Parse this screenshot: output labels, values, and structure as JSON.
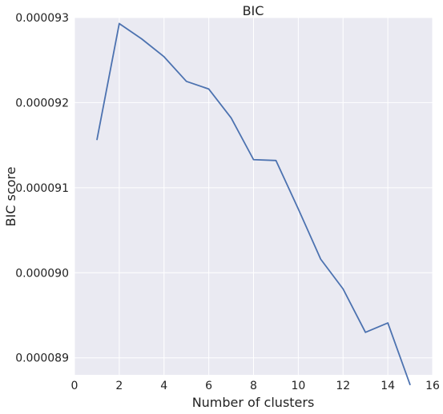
{
  "chart_data": {
    "type": "line",
    "title": "BIC",
    "xlabel": "Number of clusters",
    "ylabel": "BIC score",
    "xlim": [
      0,
      16
    ],
    "ylim": [
      8.88e-05,
      9.3e-05
    ],
    "xticks": [
      0,
      2,
      4,
      6,
      8,
      10,
      12,
      14,
      16
    ],
    "yticks": [
      8.9e-05,
      9e-05,
      9.1e-05,
      9.2e-05,
      9.3e-05
    ],
    "ytick_labels": [
      "0.000089",
      "0.000090",
      "0.000091",
      "0.000092",
      "0.000093"
    ],
    "grid": true,
    "series": [
      {
        "color": "#4c72b0",
        "x": [
          1,
          2,
          3,
          4,
          5,
          6,
          7,
          8,
          9,
          10,
          11,
          12,
          13,
          14,
          15
        ],
        "y": [
          9.156e-05,
          9.293e-05,
          9.275e-05,
          9.254e-05,
          9.225e-05,
          9.216e-05,
          9.182e-05,
          9.133e-05,
          9.132e-05,
          9.075e-05,
          9.016e-05,
          8.981e-05,
          8.93e-05,
          8.941e-05,
          8.868e-05
        ]
      }
    ],
    "colors": {
      "background": "#eaeaf2",
      "grid": "#ffffff",
      "text": "#222222"
    }
  }
}
